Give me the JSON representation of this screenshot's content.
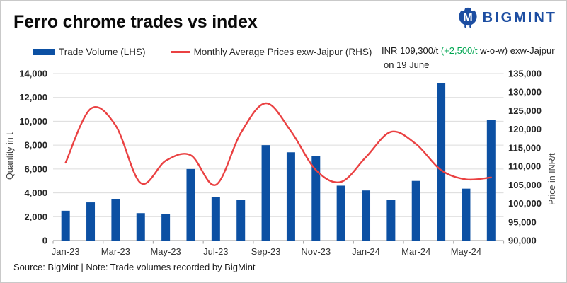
{
  "header": {
    "title": "Ferro chrome trades vs index",
    "brand": "BIGMINT"
  },
  "legend": {
    "items": [
      {
        "label": "Trade Volume (LHS)",
        "swatch": "bar"
      },
      {
        "label": "Monthly Average Prices exw-Jajpur (RHS)",
        "swatch": "line"
      }
    ]
  },
  "annotation": {
    "prefix": "INR 109,300/t ",
    "highlight": "(+2,500/t",
    "suffix": " w-o-w) exw-Jajpur",
    "line2": "on 19 June",
    "highlight_color": "#00a651"
  },
  "chart_data": {
    "type": "bar",
    "subtype": "combo-bar-line",
    "title": "Ferro chrome trades vs index",
    "categories": [
      "Jan-23",
      "Feb-23",
      "Mar-23",
      "Apr-23",
      "May-23",
      "Jun-23",
      "Jul-23",
      "Aug-23",
      "Sep-23",
      "Oct-23",
      "Nov-23",
      "Dec-23",
      "Jan-24",
      "Feb-24",
      "Mar-24",
      "Apr-24",
      "May-24",
      "Jun-24"
    ],
    "x_visible_tick_labels": [
      "Jan-23",
      "Mar-23",
      "May-23",
      "Jul-23",
      "Sep-23",
      "Nov-23",
      "Jan-24",
      "Mar-24",
      "May-24"
    ],
    "series": [
      {
        "name": "Trade Volume (LHS)",
        "type": "bar",
        "axis": "left",
        "color": "#0c50a3",
        "values": [
          2500,
          3200,
          3500,
          2300,
          2200,
          6000,
          3650,
          3400,
          8000,
          7400,
          7100,
          4600,
          4200,
          3400,
          5000,
          13200,
          4350,
          10100
        ]
      },
      {
        "name": "Monthly Average Prices exw-Jajpur (RHS)",
        "type": "line",
        "axis": "right",
        "smooth": true,
        "color": "#ea4142",
        "values": [
          111000,
          125500,
          121000,
          105500,
          111500,
          113000,
          105000,
          119000,
          127000,
          119500,
          109000,
          105800,
          112500,
          119300,
          116000,
          109000,
          106500,
          107000
        ]
      }
    ],
    "y_left": {
      "title": "Quantity in t",
      "min": 0,
      "max": 14000,
      "tick_labels": [
        "0",
        "2,000",
        "4,000",
        "6,000",
        "8,000",
        "10,000",
        "12,000",
        "14,000"
      ]
    },
    "y_right": {
      "title": "Price in INR/t",
      "min": 90000,
      "max": 135000,
      "tick_labels": [
        "90,000",
        "95,000",
        "100,000",
        "105,000",
        "110,000",
        "115,000",
        "120,000",
        "125,000",
        "130,000",
        "135,000"
      ]
    },
    "grid": true,
    "legend_position": "top-left"
  },
  "footer": {
    "source": "Source: BigMint | Note: Trade volumes recorded by BigMint"
  },
  "colors": {
    "bar_blue": "#0c50a3",
    "line_red": "#ea4142",
    "green": "#00a651",
    "brand_blue": "#1c4da1",
    "grid": "#dcdcdc",
    "axis": "#adadad"
  }
}
